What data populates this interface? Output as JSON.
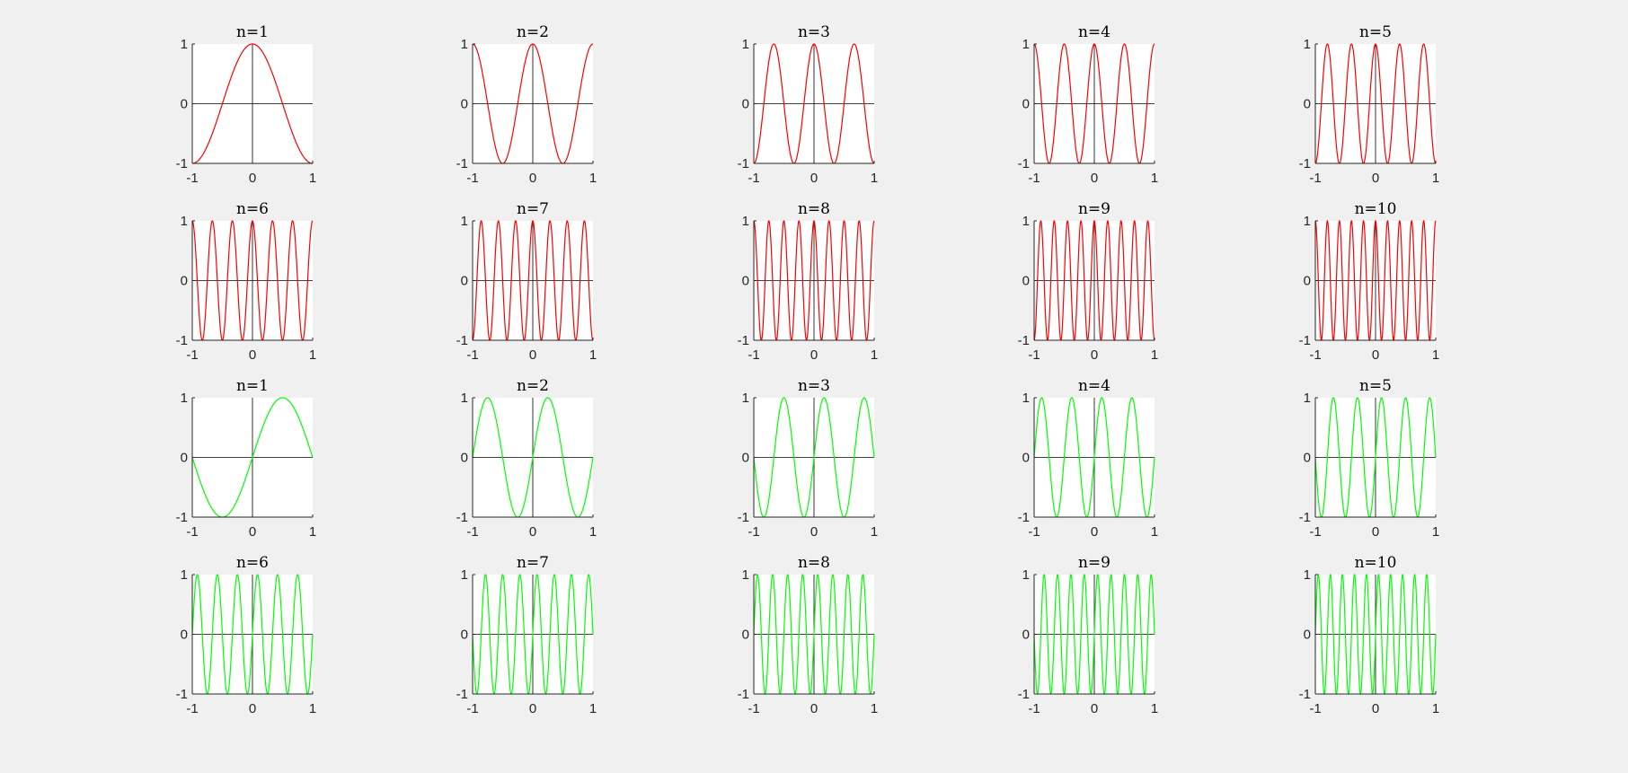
{
  "colors": {
    "background": "#f0f0f0",
    "cosine": "#ff0000",
    "sine": "#00ff00"
  },
  "chart_data": [
    {
      "type": "line",
      "title": "n=1",
      "function": "cos(n*pi*x)",
      "n": 1,
      "color": "#ff0000",
      "xlim": [
        -1,
        1
      ],
      "ylim": [
        -1,
        1
      ],
      "xticks": [
        "-1",
        "0",
        "1"
      ],
      "yticks": [
        "-1",
        "0",
        "1"
      ]
    },
    {
      "type": "line",
      "title": "n=2",
      "function": "cos(n*pi*x)",
      "n": 2,
      "color": "#ff0000",
      "xlim": [
        -1,
        1
      ],
      "ylim": [
        -1,
        1
      ],
      "xticks": [
        "-1",
        "0",
        "1"
      ],
      "yticks": [
        "-1",
        "0",
        "1"
      ]
    },
    {
      "type": "line",
      "title": "n=3",
      "function": "cos(n*pi*x)",
      "n": 3,
      "color": "#ff0000",
      "xlim": [
        -1,
        1
      ],
      "ylim": [
        -1,
        1
      ],
      "xticks": [
        "-1",
        "0",
        "1"
      ],
      "yticks": [
        "-1",
        "0",
        "1"
      ]
    },
    {
      "type": "line",
      "title": "n=4",
      "function": "cos(n*pi*x)",
      "n": 4,
      "color": "#ff0000",
      "xlim": [
        -1,
        1
      ],
      "ylim": [
        -1,
        1
      ],
      "xticks": [
        "-1",
        "0",
        "1"
      ],
      "yticks": [
        "-1",
        "0",
        "1"
      ]
    },
    {
      "type": "line",
      "title": "n=5",
      "function": "cos(n*pi*x)",
      "n": 5,
      "color": "#ff0000",
      "xlim": [
        -1,
        1
      ],
      "ylim": [
        -1,
        1
      ],
      "xticks": [
        "-1",
        "0",
        "1"
      ],
      "yticks": [
        "-1",
        "0",
        "1"
      ]
    },
    {
      "type": "line",
      "title": "n=6",
      "function": "cos(n*pi*x)",
      "n": 6,
      "color": "#ff0000",
      "xlim": [
        -1,
        1
      ],
      "ylim": [
        -1,
        1
      ],
      "xticks": [
        "-1",
        "0",
        "1"
      ],
      "yticks": [
        "-1",
        "0",
        "1"
      ]
    },
    {
      "type": "line",
      "title": "n=7",
      "function": "cos(n*pi*x)",
      "n": 7,
      "color": "#ff0000",
      "xlim": [
        -1,
        1
      ],
      "ylim": [
        -1,
        1
      ],
      "xticks": [
        "-1",
        "0",
        "1"
      ],
      "yticks": [
        "-1",
        "0",
        "1"
      ]
    },
    {
      "type": "line",
      "title": "n=8",
      "function": "cos(n*pi*x)",
      "n": 8,
      "color": "#ff0000",
      "xlim": [
        -1,
        1
      ],
      "ylim": [
        -1,
        1
      ],
      "xticks": [
        "-1",
        "0",
        "1"
      ],
      "yticks": [
        "-1",
        "0",
        "1"
      ]
    },
    {
      "type": "line",
      "title": "n=9",
      "function": "cos(n*pi*x)",
      "n": 9,
      "color": "#ff0000",
      "xlim": [
        -1,
        1
      ],
      "ylim": [
        -1,
        1
      ],
      "xticks": [
        "-1",
        "0",
        "1"
      ],
      "yticks": [
        "-1",
        "0",
        "1"
      ]
    },
    {
      "type": "line",
      "title": "n=10",
      "function": "cos(n*pi*x)",
      "n": 10,
      "color": "#ff0000",
      "xlim": [
        -1,
        1
      ],
      "ylim": [
        -1,
        1
      ],
      "xticks": [
        "-1",
        "0",
        "1"
      ],
      "yticks": [
        "-1",
        "0",
        "1"
      ]
    },
    {
      "type": "line",
      "title": "n=1",
      "function": "sin(n*pi*x)",
      "n": 1,
      "color": "#00ff00",
      "xlim": [
        -1,
        1
      ],
      "ylim": [
        -1,
        1
      ],
      "xticks": [
        "-1",
        "0",
        "1"
      ],
      "yticks": [
        "-1",
        "0",
        "1"
      ]
    },
    {
      "type": "line",
      "title": "n=2",
      "function": "sin(n*pi*x)",
      "n": 2,
      "color": "#00ff00",
      "xlim": [
        -1,
        1
      ],
      "ylim": [
        -1,
        1
      ],
      "xticks": [
        "-1",
        "0",
        "1"
      ],
      "yticks": [
        "-1",
        "0",
        "1"
      ]
    },
    {
      "type": "line",
      "title": "n=3",
      "function": "sin(n*pi*x)",
      "n": 3,
      "color": "#00ff00",
      "xlim": [
        -1,
        1
      ],
      "ylim": [
        -1,
        1
      ],
      "xticks": [
        "-1",
        "0",
        "1"
      ],
      "yticks": [
        "-1",
        "0",
        "1"
      ]
    },
    {
      "type": "line",
      "title": "n=4",
      "function": "sin(n*pi*x)",
      "n": 4,
      "color": "#00ff00",
      "xlim": [
        -1,
        1
      ],
      "ylim": [
        -1,
        1
      ],
      "xticks": [
        "-1",
        "0",
        "1"
      ],
      "yticks": [
        "-1",
        "0",
        "1"
      ]
    },
    {
      "type": "line",
      "title": "n=5",
      "function": "sin(n*pi*x)",
      "n": 5,
      "color": "#00ff00",
      "xlim": [
        -1,
        1
      ],
      "ylim": [
        -1,
        1
      ],
      "xticks": [
        "-1",
        "0",
        "1"
      ],
      "yticks": [
        "-1",
        "0",
        "1"
      ]
    },
    {
      "type": "line",
      "title": "n=6",
      "function": "sin(n*pi*x)",
      "n": 6,
      "color": "#00ff00",
      "xlim": [
        -1,
        1
      ],
      "ylim": [
        -1,
        1
      ],
      "xticks": [
        "-1",
        "0",
        "1"
      ],
      "yticks": [
        "-1",
        "0",
        "1"
      ]
    },
    {
      "type": "line",
      "title": "n=7",
      "function": "sin(n*pi*x)",
      "n": 7,
      "color": "#00ff00",
      "xlim": [
        -1,
        1
      ],
      "ylim": [
        -1,
        1
      ],
      "xticks": [
        "-1",
        "0",
        "1"
      ],
      "yticks": [
        "-1",
        "0",
        "1"
      ]
    },
    {
      "type": "line",
      "title": "n=8",
      "function": "sin(n*pi*x)",
      "n": 8,
      "color": "#00ff00",
      "xlim": [
        -1,
        1
      ],
      "ylim": [
        -1,
        1
      ],
      "xticks": [
        "-1",
        "0",
        "1"
      ],
      "yticks": [
        "-1",
        "0",
        "1"
      ]
    },
    {
      "type": "line",
      "title": "n=9",
      "function": "sin(n*pi*x)",
      "n": 9,
      "color": "#00ff00",
      "xlim": [
        -1,
        1
      ],
      "ylim": [
        -1,
        1
      ],
      "xticks": [
        "-1",
        "0",
        "1"
      ],
      "yticks": [
        "-1",
        "0",
        "1"
      ]
    },
    {
      "type": "line",
      "title": "n=10",
      "function": "sin(n*pi*x)",
      "n": 10,
      "color": "#00ff00",
      "xlim": [
        -1,
        1
      ],
      "ylim": [
        -1,
        1
      ],
      "xticks": [
        "-1",
        "0",
        "1"
      ],
      "yticks": [
        "-1",
        "0",
        "1"
      ]
    }
  ]
}
